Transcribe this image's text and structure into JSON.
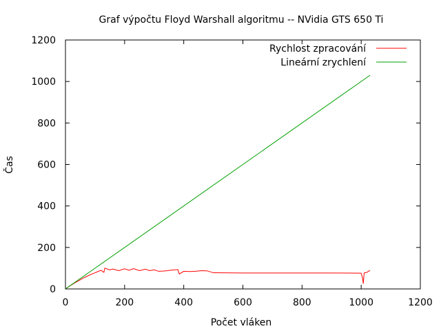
{
  "chart_data": {
    "type": "line",
    "title": "Graf výpočtu Floyd Warshall algoritmu -- NVidia GTS 650 Ti",
    "xlabel": "Počet vláken",
    "ylabel": "Čas",
    "xlim": [
      0,
      1200
    ],
    "ylim": [
      0,
      1200
    ],
    "xticks": [
      "0",
      "200",
      "400",
      "600",
      "800",
      "1000",
      "1200"
    ],
    "yticks": [
      "0",
      "200",
      "400",
      "600",
      "800",
      "1000",
      "1200"
    ],
    "legend_position": "top-right",
    "grid": false,
    "series": [
      {
        "name": "Rychlost zpracování",
        "color": "#ff0000",
        "points": [
          [
            1,
            1
          ],
          [
            10,
            10
          ],
          [
            20,
            19
          ],
          [
            30,
            28
          ],
          [
            40,
            36
          ],
          [
            50,
            44
          ],
          [
            60,
            52
          ],
          [
            70,
            59
          ],
          [
            80,
            66
          ],
          [
            90,
            72
          ],
          [
            100,
            78
          ],
          [
            110,
            84
          ],
          [
            120,
            90
          ],
          [
            130,
            80
          ],
          [
            133,
            100
          ],
          [
            150,
            92
          ],
          [
            160,
            96
          ],
          [
            180,
            88
          ],
          [
            200,
            97
          ],
          [
            215,
            90
          ],
          [
            230,
            98
          ],
          [
            250,
            88
          ],
          [
            270,
            95
          ],
          [
            285,
            88
          ],
          [
            300,
            92
          ],
          [
            315,
            85
          ],
          [
            330,
            86
          ],
          [
            345,
            88
          ],
          [
            360,
            91
          ],
          [
            380,
            93
          ],
          [
            385,
            72
          ],
          [
            400,
            85
          ],
          [
            420,
            84
          ],
          [
            440,
            85
          ],
          [
            460,
            88
          ],
          [
            480,
            87
          ],
          [
            500,
            78
          ],
          [
            600,
            77
          ],
          [
            700,
            77
          ],
          [
            800,
            77
          ],
          [
            900,
            77
          ],
          [
            1000,
            76
          ],
          [
            1005,
            50
          ],
          [
            1007,
            25
          ],
          [
            1010,
            77
          ],
          [
            1020,
            80
          ],
          [
            1025,
            86
          ],
          [
            1030,
            88
          ]
        ]
      },
      {
        "name": "Lineární zrychlení",
        "color": "#00a000",
        "points": [
          [
            1,
            1
          ],
          [
            1030,
            1030
          ]
        ]
      }
    ]
  }
}
